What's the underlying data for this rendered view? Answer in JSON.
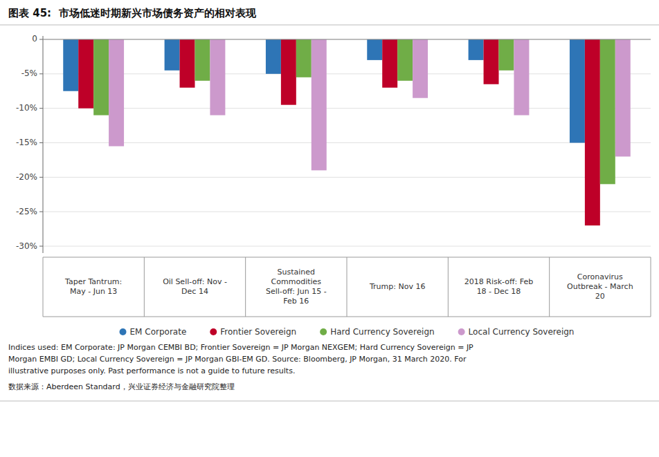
{
  "chart_data": {
    "type": "bar",
    "title": "图表 45:  市场低迷时期新兴市场债务资产的相对表现",
    "categories": [
      "Taper Tantrum:\nMay - Jun 13",
      "Oil Sell-off: Nov -\nDec 14",
      "Sustained\nCommodities\nSell-off: Jun 15 -\nFeb 16",
      "Trump: Nov 16",
      "2018 Risk-off: Feb\n18 - Dec 18",
      "Coronavirus\nOutbreak - March\n20"
    ],
    "series": [
      {
        "name": "EM Corporate",
        "color": "#2E75B6",
        "values": [
          -7.5,
          -4.5,
          -5.0,
          -3.0,
          -3.0,
          -15.0
        ]
      },
      {
        "name": "Frontier Sovereign",
        "color": "#BE0028",
        "values": [
          -10.0,
          -7.0,
          -9.5,
          -7.0,
          -6.5,
          -27.0
        ]
      },
      {
        "name": "Hard Currency Sovereign",
        "color": "#70AD47",
        "values": [
          -11.0,
          -6.0,
          -5.5,
          -6.0,
          -4.5,
          -21.0
        ]
      },
      {
        "name": "Local Currency Sovereign",
        "color": "#CC99CC",
        "values": [
          -15.5,
          -11.0,
          -19.0,
          -8.5,
          -11.0,
          -17.0
        ]
      }
    ],
    "ylim": [
      -31,
      0.5
    ],
    "yticks": [
      0,
      {
        "value": -5,
        "label": "-5%"
      },
      {
        "value": -10,
        "label": "-10%"
      },
      {
        "value": -15,
        "label": "-15%"
      },
      {
        "value": -20,
        "label": "-20%"
      },
      {
        "value": -25,
        "label": "-25%"
      },
      {
        "value": -30,
        "label": "-30%"
      }
    ],
    "grid": true,
    "legend": "bottom",
    "annotations": [
      "Indices used: EM Corporate: JP Morgan CEMBI BD; Frontier Sovereign = JP Morgan NEXGEM; Hard Currency Sovereign = JP",
      "Morgan EMBI GD; Local Currency Sovereign = JP Morgan GBI-EM GD. Source: Bloomberg, JP Morgan, 31 March 2020. For",
      "illustrative purposes only. Past performance is not a guide to future results.",
      "数据来源：Aberdeen Standard，兴业证券经济与金融研究院整理"
    ]
  }
}
